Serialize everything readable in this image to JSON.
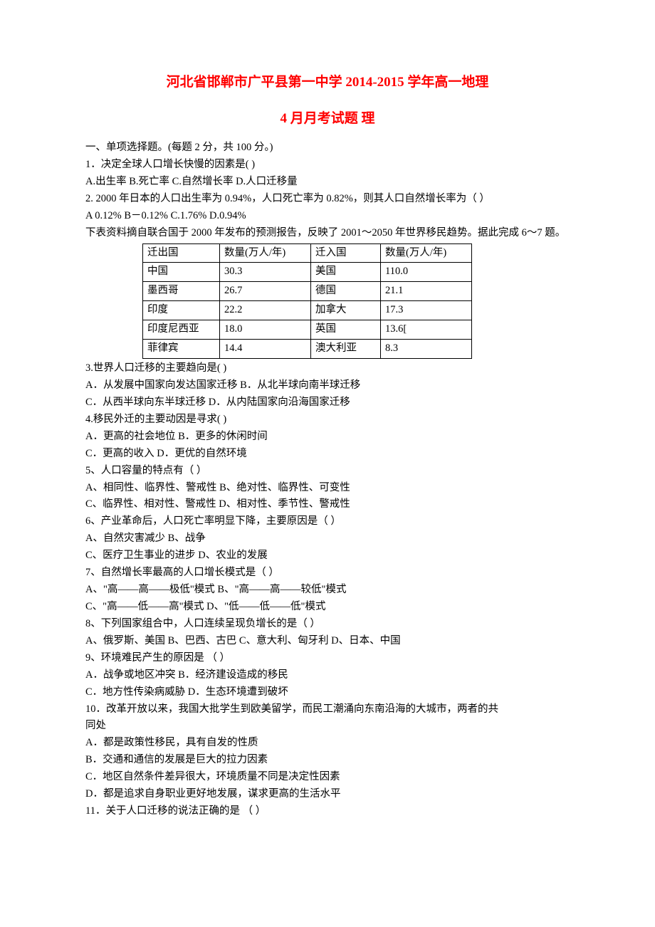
{
  "title": {
    "line1": "河北省邯郸市广平县第一中学 2014-2015 学年高一地理",
    "line2": "4 月月考试题 理"
  },
  "intro": "一、单项选择题。(每题 2 分，共 100 分。)",
  "q1": {
    "text": "1．决定全球人口增长快慢的因素是(   )",
    "opts": "A.出生率               B.死亡率              C.自然增长率         D.人口迁移量"
  },
  "q2": {
    "text": "2.  2000 年日本的人口出生率为 0.94%，人口死亡率为 0.82%，则其人口自然增长率为（ ）",
    "opts": "A 0.12%                B－0.12%              C.1.76%                 D.0.94%"
  },
  "table_intro": "下表资料摘自联合国于 2000 年发布的预测报告，反映了 2001～2050 年世界移民趋势。据此完成 6～7 题。",
  "table": {
    "headers": [
      "迁出国",
      "数量(万人/年)",
      "迁入国",
      "数量(万人/年)"
    ],
    "rows": [
      [
        "中国",
        "30.3",
        "美国",
        "110.0"
      ],
      [
        "墨西哥",
        "26.7",
        "德国",
        "21.1"
      ],
      [
        "印度",
        "22.2",
        "加拿大",
        "17.3"
      ],
      [
        "印度尼西亚",
        "18.0",
        "英国",
        "13.6["
      ],
      [
        "菲律宾",
        "14.4",
        "澳大利亚",
        "8.3"
      ]
    ],
    "col_widths": [
      "108px",
      "128px",
      "98px",
      "128px"
    ]
  },
  "q3": {
    "text": "3.世界人口迁移的主要趋向是(       )",
    "opt1": "A．从发展中国家向发达国家迁移          B．从北半球向南半球迁移",
    "opt2": "C．从西半球向东半球迁移                    D．从内陆国家向沿海国家迁移"
  },
  "q4": {
    "text": "4.移民外迁的主要动因是寻求(       )",
    "opt1": "A．更高的社会地位       B．更多的休闲时间",
    "opt2": "C．更高的收入             D．更优的自然环境"
  },
  "q5": {
    "text": "5、人口容量的特点有（ ）",
    "opt1": "A、相同性、临界性、警戒性              B、绝对性、临界性、可变性",
    "opt2": "C、临界性、相对性、警戒性              D、相对性、季节性、警戒性"
  },
  "q6": {
    "text": "6、产业革命后，人口死亡率明显下降，主要原因是（ ）",
    "opt1": "A、自然灾害减少                          B、战争",
    "opt2": "C、医疗卫生事业的进步            D、农业的发展"
  },
  "q7": {
    "text": "7、自然增长率最高的人口增长模式是（ ）",
    "opt1": "A、\"高――高――极低\"模式         B、\"高――高――较低\"模式",
    "opt2": "C、\"高――低――高\"模式         D、\"低――低――低\"模式"
  },
  "q8": {
    "text": "8、下列国家组合中，人口连续呈现负增长的是（    ）",
    "opts": "A、俄罗斯、美国     B、巴西、古巴      C、意大利、匈牙利       D、日本、中国"
  },
  "q9": {
    "text": "9、环境难民产生的原因是     （           ）",
    "opt1": "A．战争或地区冲突           B．经济建设造成的移民",
    "opt2": "C．地方性传染病威胁        D．生态环境遭到破坏"
  },
  "q10": {
    "text1": "10．改革开放以来，我国大批学生到欧美留学，而民工潮涌向东南沿海的大城市，两者的共",
    "text2": "同处",
    "optA": "A．都是政策性移民，具有自发的性质",
    "optB": "B．交通和通信的发展是巨大的拉力因素",
    "optC": "C．地区自然条件差异很大，环境质量不同是决定性因素",
    "optD": "D．都是追求自身职业更好地发展，谋求更高的生活水平"
  },
  "q11": {
    "text": "11．关于人口迁移的说法正确的是     （           ）"
  },
  "colors": {
    "title": "#ff0000",
    "text": "#000000",
    "border": "#000000",
    "background": "#ffffff"
  }
}
